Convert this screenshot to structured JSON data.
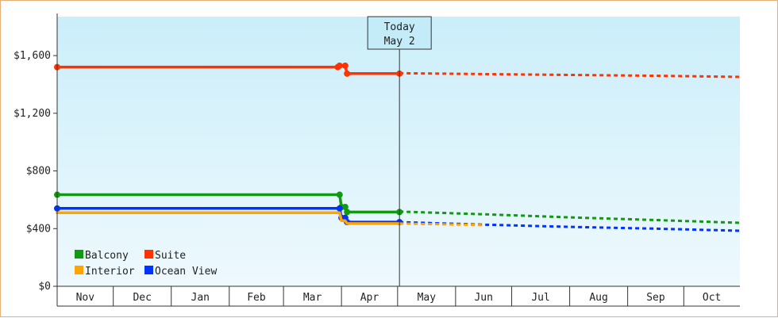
{
  "chart_data": {
    "type": "line",
    "x_unit": "date",
    "xlim": [
      "2023-11-01",
      "2024-10-31"
    ],
    "ylim": [
      0,
      1870
    ],
    "y_ticks": [
      0,
      400,
      800,
      1200,
      1600
    ],
    "y_tick_labels": [
      "$0",
      "$400",
      "$800",
      "$1,200",
      "$1,600"
    ],
    "month_labels": [
      "Nov",
      "Dec",
      "Jan",
      "Feb",
      "Mar",
      "Apr",
      "May",
      "Jun",
      "Jul",
      "Aug",
      "Sep",
      "Oct"
    ],
    "month_starts": [
      "2023-11-01",
      "2023-12-01",
      "2024-01-01",
      "2024-02-01",
      "2024-03-01",
      "2024-04-01",
      "2024-05-01",
      "2024-06-01",
      "2024-07-01",
      "2024-08-01",
      "2024-09-01",
      "2024-10-01",
      "2024-10-31"
    ],
    "today_marker": {
      "date": "2024-05-02",
      "label_line1": "Today",
      "label_line2": "May 2"
    },
    "legend": {
      "placement": "bottom-left",
      "entries": [
        {
          "name": "Balcony",
          "color": "#119911"
        },
        {
          "name": "Suite",
          "color": "#ff3300"
        },
        {
          "name": "Interior",
          "color": "#ffa500"
        },
        {
          "name": "Ocean View",
          "color": "#0033ff"
        }
      ]
    },
    "series": [
      {
        "name": "Suite",
        "color": "#ff3300",
        "step_points": [
          [
            "2023-11-01",
            1520
          ],
          [
            "2024-03-30",
            1520
          ],
          [
            "2024-03-31",
            1530
          ],
          [
            "2024-04-03",
            1530
          ],
          [
            "2024-04-04",
            1475
          ],
          [
            "2024-05-02",
            1475
          ]
        ],
        "markers": [
          "2023-11-01",
          "2024-03-30",
          "2024-03-31",
          "2024-04-03",
          "2024-04-04",
          "2024-05-02"
        ],
        "forecast": [
          [
            "2024-05-02",
            1478
          ],
          [
            "2024-06-15",
            1472
          ],
          [
            "2024-08-01",
            1466
          ],
          [
            "2024-09-15",
            1460
          ],
          [
            "2024-10-31",
            1452
          ]
        ]
      },
      {
        "name": "Balcony",
        "color": "#119911",
        "step_points": [
          [
            "2023-11-01",
            635
          ],
          [
            "2024-03-31",
            635
          ],
          [
            "2024-04-01",
            550
          ],
          [
            "2024-04-03",
            550
          ],
          [
            "2024-04-04",
            515
          ],
          [
            "2024-05-02",
            515
          ]
        ],
        "markers": [
          "2023-11-01",
          "2024-03-31",
          "2024-04-01",
          "2024-04-03",
          "2024-04-04",
          "2024-05-02"
        ],
        "forecast": [
          [
            "2024-05-02",
            518
          ],
          [
            "2024-06-15",
            500
          ],
          [
            "2024-08-01",
            478
          ],
          [
            "2024-09-15",
            460
          ],
          [
            "2024-10-31",
            440
          ]
        ]
      },
      {
        "name": "Ocean View",
        "color": "#0033ff",
        "step_points": [
          [
            "2023-11-01",
            540
          ],
          [
            "2024-03-31",
            540
          ],
          [
            "2024-04-01",
            475
          ],
          [
            "2024-04-03",
            475
          ],
          [
            "2024-04-04",
            445
          ],
          [
            "2024-05-02",
            445
          ]
        ],
        "markers": [
          "2023-11-01",
          "2024-03-31",
          "2024-04-01",
          "2024-04-03",
          "2024-04-04",
          "2024-05-02"
        ],
        "forecast": [
          [
            "2024-05-02",
            445
          ],
          [
            "2024-06-15",
            428
          ],
          [
            "2024-08-01",
            412
          ],
          [
            "2024-09-15",
            400
          ],
          [
            "2024-10-31",
            385
          ]
        ]
      },
      {
        "name": "Interior",
        "color": "#ffa500",
        "step_points": [
          [
            "2023-11-01",
            510
          ],
          [
            "2024-03-31",
            510
          ],
          [
            "2024-04-01",
            455
          ],
          [
            "2024-04-03",
            455
          ],
          [
            "2024-04-04",
            435
          ],
          [
            "2024-05-02",
            435
          ]
        ],
        "markers": [],
        "forecast": [
          [
            "2024-05-02",
            435
          ],
          [
            "2024-06-15",
            425
          ]
        ]
      }
    ]
  }
}
